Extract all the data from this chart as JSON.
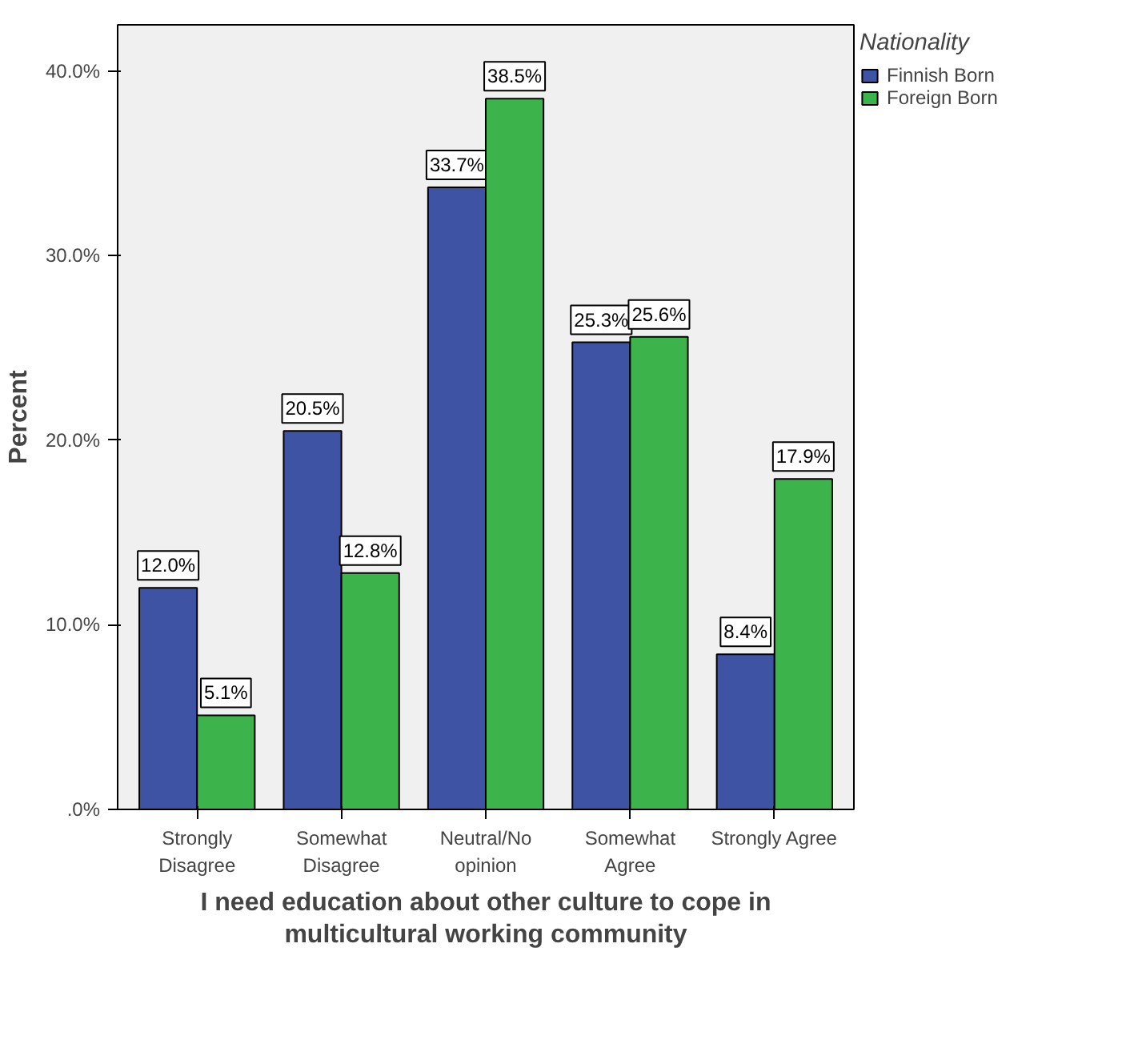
{
  "chart_data": {
    "type": "bar",
    "xlabel": "I need education about other culture to cope in\nmulticultural working community",
    "ylabel": "Percent",
    "legend_title": "Nationality",
    "categories": [
      "Strongly\nDisagree",
      "Somewhat\nDisagree",
      "Neutral/No\nopinion",
      "Somewhat\nAgree",
      "Strongly Agree"
    ],
    "series": [
      {
        "name": "Finnish Born",
        "color": "#3e53a4",
        "values": [
          12.0,
          20.5,
          33.7,
          25.3,
          8.4
        ],
        "value_labels": [
          "12.0%",
          "20.5%",
          "33.7%",
          "25.3%",
          "8.4%"
        ]
      },
      {
        "name": "Foreign Born",
        "color": "#3cb44b",
        "values": [
          5.1,
          12.8,
          38.5,
          25.6,
          17.9
        ],
        "value_labels": [
          "5.1%",
          "12.8%",
          "38.5%",
          "25.6%",
          "17.9%"
        ]
      }
    ],
    "ylim": [
      0,
      42.5
    ],
    "yticks": [
      {
        "value": 0,
        "label": ".0%"
      },
      {
        "value": 10,
        "label": "10.0%"
      },
      {
        "value": 20,
        "label": "20.0%"
      },
      {
        "value": 30,
        "label": "30.0%"
      },
      {
        "value": 40,
        "label": "40.0%"
      }
    ],
    "grid": false,
    "legend": "top right"
  }
}
